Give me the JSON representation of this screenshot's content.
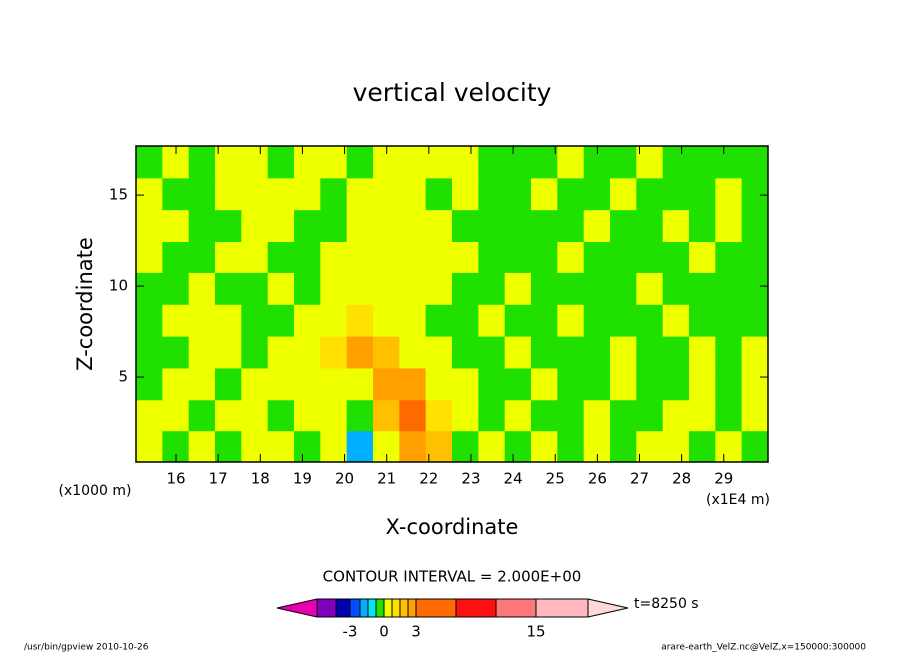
{
  "chart_data": {
    "type": "contour",
    "title": "vertical velocity",
    "x_label": "X-coordinate",
    "y_label": "Z-coordinate",
    "x_unit": "(x1E4 m)",
    "y_unit": "(x1000 m)",
    "contour_interval": "CONTOUR INTERVAL = 2.000E+00",
    "time": "t=8250 s",
    "footer_left": "/usr/bin/gpview  2010-10-26",
    "footer_right": "arare-earth_VelZ.nc@VelZ,x=150000:300000",
    "xlim": [
      15.05,
      30.05
    ],
    "ylim": [
      0.33,
      17.7
    ],
    "xticks": [
      16,
      17,
      18,
      19,
      20,
      21,
      22,
      23,
      24,
      25,
      26,
      27,
      28,
      29
    ],
    "yticks": [
      5,
      10,
      15
    ],
    "x": [
      15.36,
      15.99,
      16.61,
      17.24,
      17.86,
      18.49,
      19.11,
      19.74,
      20.36,
      20.99,
      21.61,
      22.24,
      22.86,
      23.49,
      24.11,
      24.74,
      25.36,
      25.99,
      26.61,
      27.24,
      27.86,
      28.49,
      29.11,
      29.74
    ],
    "z": [
      1.2,
      2.9,
      4.6,
      6.4,
      8.1,
      9.9,
      11.6,
      13.3,
      15.1,
      16.8
    ],
    "values": [
      [
        0.3,
        -0.2,
        0.3,
        -0.2,
        0.3,
        0.3,
        -0.2,
        0.3,
        -1.5,
        0.3,
        2,
        1.5,
        -0.2,
        0.3,
        -0.2,
        0.3,
        -0.2,
        0.3,
        -0.2,
        0.3,
        0.3,
        -0.2,
        0.3,
        -0.2
      ],
      [
        0.3,
        0.3,
        -0.2,
        0.3,
        0.3,
        -0.2,
        0.3,
        0.3,
        -0.2,
        1.2,
        3,
        0.8,
        0.3,
        -0.2,
        0.3,
        -0.2,
        -0.2,
        0.3,
        -0.2,
        -0.2,
        0.3,
        0.3,
        -0.2,
        0.3
      ],
      [
        -0.2,
        0.3,
        0.3,
        -0.2,
        0.3,
        0.3,
        0.3,
        0.3,
        0.3,
        2.5,
        2.5,
        0.3,
        0.3,
        -0.2,
        -0.2,
        0.3,
        -0.2,
        -0.2,
        0.3,
        -0.2,
        -0.2,
        0.3,
        -0.2,
        0.3
      ],
      [
        -0.2,
        -0.2,
        0.3,
        0.3,
        -0.2,
        0.3,
        0.3,
        0.8,
        2,
        1.5,
        0.3,
        0.3,
        -0.2,
        -0.2,
        0.3,
        -0.2,
        -0.2,
        -0.2,
        0.3,
        -0.2,
        -0.2,
        0.3,
        -0.2,
        0.3
      ],
      [
        -0.2,
        0.3,
        0.3,
        0.3,
        -0.2,
        -0.2,
        0.3,
        0.3,
        0.8,
        0.3,
        0.3,
        -0.2,
        -0.2,
        0.3,
        -0.2,
        -0.2,
        0.3,
        -0.2,
        -0.2,
        -0.2,
        0.3,
        -0.2,
        -0.2,
        -0.2
      ],
      [
        -0.2,
        -0.2,
        0.3,
        -0.2,
        -0.2,
        0.3,
        -0.2,
        0.3,
        0.3,
        0.3,
        0.3,
        0.3,
        -0.2,
        -0.2,
        0.3,
        -0.2,
        -0.2,
        -0.2,
        -0.2,
        0.3,
        -0.2,
        -0.2,
        -0.2,
        -0.2
      ],
      [
        0.3,
        -0.2,
        -0.2,
        0.3,
        0.3,
        -0.2,
        -0.2,
        0.3,
        0.3,
        0.3,
        0.3,
        0.3,
        0.3,
        -0.2,
        -0.2,
        -0.2,
        0.3,
        -0.2,
        -0.2,
        -0.2,
        -0.2,
        0.3,
        -0.2,
        -0.2
      ],
      [
        0.3,
        0.3,
        -0.2,
        -0.2,
        0.3,
        0.3,
        -0.2,
        -0.2,
        0.3,
        0.3,
        0.3,
        0.3,
        -0.2,
        -0.2,
        -0.2,
        -0.2,
        -0.2,
        0.3,
        -0.2,
        -0.2,
        0.3,
        -0.2,
        0.3,
        -0.2
      ],
      [
        0.3,
        -0.2,
        -0.2,
        0.3,
        0.3,
        0.3,
        0.3,
        -0.2,
        0.3,
        0.3,
        0.3,
        -0.2,
        0.3,
        -0.2,
        -0.2,
        0.3,
        -0.2,
        -0.2,
        0.3,
        -0.2,
        -0.2,
        -0.2,
        0.3,
        -0.2
      ],
      [
        -0.2,
        0.3,
        -0.2,
        0.3,
        0.3,
        -0.2,
        0.3,
        0.3,
        -0.2,
        0.3,
        0.3,
        0.3,
        0.3,
        -0.2,
        -0.2,
        -0.2,
        0.3,
        -0.2,
        -0.2,
        0.3,
        -0.2,
        -0.2,
        -0.2,
        -0.2
      ]
    ],
    "colorbar": {
      "levels": [
        -10,
        -5,
        -3,
        -2,
        -1,
        -0.5,
        0,
        0.5,
        1,
        2,
        3,
        5,
        10,
        15,
        20
      ],
      "colors": [
        "#e800b0",
        "#8000c0",
        "#0000b0",
        "#0050ff",
        "#00b0ff",
        "#00e8f0",
        "#20e000",
        "#eeff00",
        "#ffe000",
        "#ffc000",
        "#ffa000",
        "#ff6a00",
        "#ff1010",
        "#ff7878",
        "#ffb8c0",
        "#ffd8d8"
      ],
      "ticks": [
        -3,
        0,
        3,
        15
      ]
    }
  }
}
